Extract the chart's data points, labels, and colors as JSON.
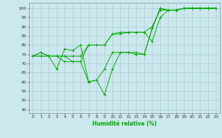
{
  "xlabel": "Humidité relative (%)",
  "background_color": "#cce8ef",
  "grid_color": "#aacccc",
  "line_color": "#00aa00",
  "xlim": [
    -0.5,
    23.5
  ],
  "ylim": [
    43,
    103
  ],
  "yticks": [
    45,
    50,
    55,
    60,
    65,
    70,
    75,
    80,
    85,
    90,
    95,
    100
  ],
  "xticks": [
    0,
    1,
    2,
    3,
    4,
    5,
    6,
    7,
    8,
    9,
    10,
    11,
    12,
    13,
    14,
    15,
    16,
    17,
    18,
    19,
    20,
    21,
    22,
    23
  ],
  "series": [
    [
      74,
      76,
      74,
      67,
      78,
      77,
      80,
      60,
      61,
      53,
      67,
      76,
      76,
      76,
      75,
      89,
      100,
      99,
      99,
      100,
      100,
      100,
      100,
      100
    ],
    [
      74,
      76,
      74,
      74,
      71,
      71,
      71,
      60,
      61,
      67,
      76,
      76,
      76,
      75,
      75,
      89,
      100,
      99,
      99,
      100,
      100,
      100,
      100,
      100
    ],
    [
      74,
      74,
      74,
      74,
      74,
      71,
      71,
      80,
      80,
      80,
      86,
      86,
      87,
      87,
      87,
      90,
      99,
      99,
      99,
      100,
      100,
      100,
      100,
      100
    ],
    [
      74,
      74,
      74,
      74,
      74,
      74,
      74,
      80,
      80,
      80,
      86,
      87,
      87,
      87,
      87,
      82,
      95,
      99,
      99,
      100,
      100,
      100,
      100,
      100
    ]
  ]
}
